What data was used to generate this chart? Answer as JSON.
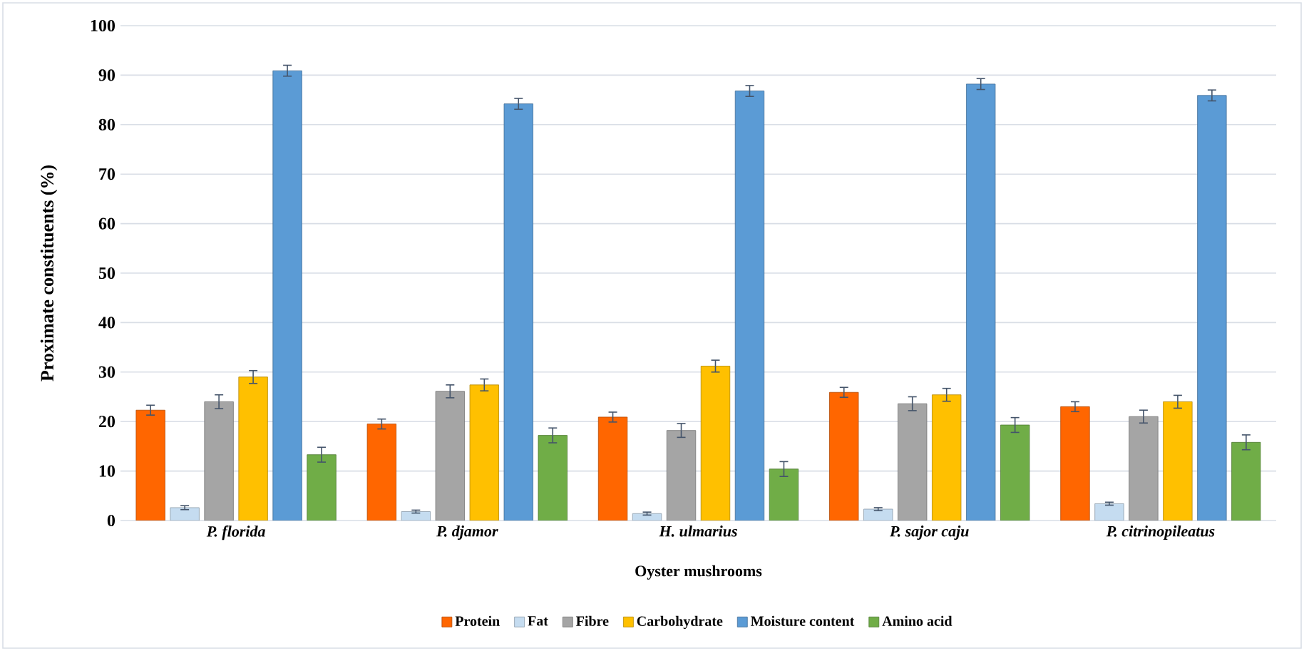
{
  "chart_data": {
    "type": "bar",
    "xlabel": "Oyster mushrooms",
    "ylabel": "Proximate constituents (%)",
    "categories": [
      "P. florida",
      "P. djamor",
      "H. ulmarius",
      "P. sajor caju",
      "P. citrinopileatus"
    ],
    "series": [
      {
        "name": "Protein",
        "color": "#ff6600",
        "values": [
          22.3,
          19.5,
          20.9,
          25.9,
          23.0
        ],
        "errors": [
          1.0,
          1.0,
          1.0,
          1.0,
          1.0
        ]
      },
      {
        "name": "Fat",
        "color": "#c5dcf0",
        "values": [
          2.6,
          1.8,
          1.4,
          2.3,
          3.4
        ],
        "errors": [
          0.4,
          0.3,
          0.3,
          0.3,
          0.3
        ]
      },
      {
        "name": "Fibre",
        "color": "#a5a5a5",
        "values": [
          24.0,
          26.1,
          18.2,
          23.6,
          21.0
        ],
        "errors": [
          1.4,
          1.3,
          1.4,
          1.4,
          1.3
        ]
      },
      {
        "name": "Carbohydrate",
        "color": "#ffc000",
        "values": [
          29.0,
          27.4,
          31.2,
          25.4,
          24.0
        ],
        "errors": [
          1.3,
          1.2,
          1.2,
          1.3,
          1.3
        ]
      },
      {
        "name": "Moisture content",
        "color": "#5b9bd5",
        "values": [
          90.9,
          84.2,
          86.8,
          88.2,
          85.9
        ],
        "errors": [
          1.1,
          1.1,
          1.1,
          1.1,
          1.1
        ]
      },
      {
        "name": "Amino acid",
        "color": "#70ad47",
        "values": [
          13.3,
          17.2,
          10.4,
          19.3,
          15.8
        ],
        "errors": [
          1.5,
          1.5,
          1.5,
          1.5,
          1.5
        ]
      }
    ],
    "ylim": [
      0,
      100
    ],
    "yticks": [
      0,
      10,
      20,
      30,
      40,
      50,
      60,
      70,
      80,
      90,
      100
    ],
    "grid": "y",
    "legend": "bottom"
  }
}
